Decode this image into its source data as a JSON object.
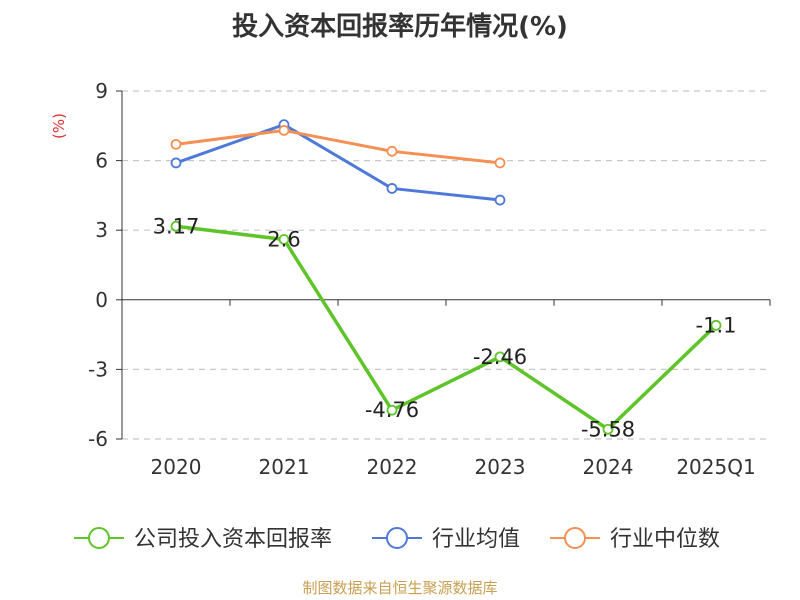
{
  "title": "投入资本回报率历年情况(%)",
  "source": "制图数据来自恒生聚源数据库",
  "colors": {
    "company": "#5ec42a",
    "industry_avg": "#4e79d8",
    "industry_median": "#f59054",
    "grid": "#c8c8c8",
    "axis": "#333333",
    "unit_label": "#e03030"
  },
  "chart_data": {
    "type": "line",
    "title": "投入资本回报率历年情况(%)",
    "ylabel": "(%)",
    "xlabel": "",
    "categories": [
      "2020",
      "2021",
      "2022",
      "2023",
      "2024",
      "2025Q1"
    ],
    "ylim": [
      -6,
      9
    ],
    "yticks": [
      9,
      6,
      3,
      0,
      -3,
      -6
    ],
    "ytick_labels": [
      "9",
      "6",
      "3",
      "0",
      "-3",
      "-6"
    ],
    "grid": true,
    "legend_position": "bottom",
    "series": [
      {
        "name": "公司投入资本回报率",
        "key": "company",
        "values": [
          3.17,
          2.6,
          -4.76,
          -2.46,
          -5.58,
          -1.1
        ],
        "labels": [
          "3.17",
          "2.6",
          "-4.76",
          "-2.46",
          "-5.58",
          "-1.1"
        ]
      },
      {
        "name": "行业均值",
        "key": "industry_avg",
        "values": [
          5.9,
          7.55,
          4.8,
          4.3,
          null,
          null
        ]
      },
      {
        "name": "行业中位数",
        "key": "industry_median",
        "values": [
          6.7,
          7.3,
          6.4,
          5.9,
          null,
          null
        ]
      }
    ]
  }
}
